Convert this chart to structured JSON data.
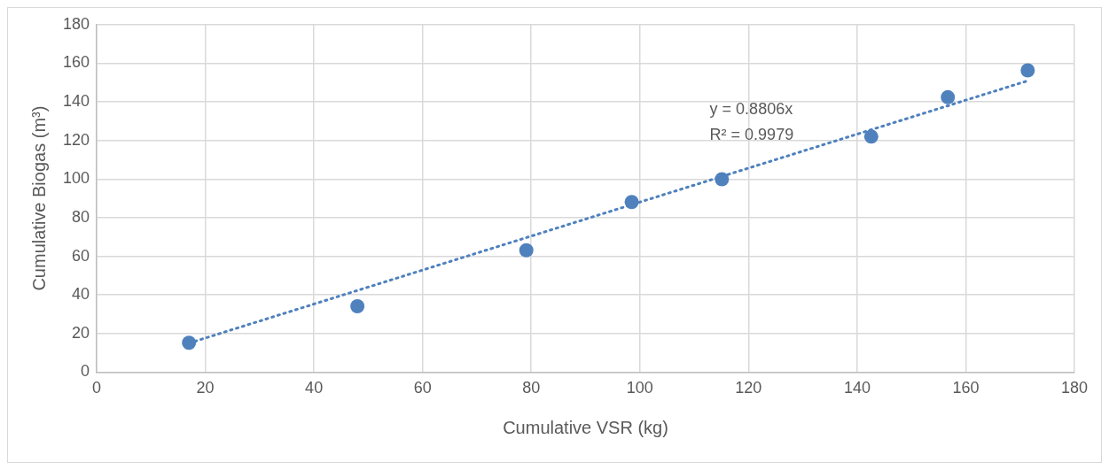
{
  "chart_data": {
    "type": "scatter",
    "xlabel": "Cumulative VSR (kg)",
    "ylabel": "Cumulative Biogas (m³)",
    "series": [
      {
        "color": "#4f81bd",
        "marker": "circle",
        "x": [
          17.0,
          48.0,
          79.1,
          98.5,
          115.1,
          142.6,
          156.7,
          171.4
        ],
        "values": [
          15.2,
          34.1,
          63.1,
          88.1,
          99.9,
          122.0,
          142.4,
          156.3
        ]
      },
      {
        "type": "line",
        "color": "#4f81bd",
        "line_style": "dotted",
        "marker": "none",
        "x": [
          17.0,
          171.4
        ],
        "values": [
          15.0,
          150.9
        ]
      }
    ],
    "annotations": [
      "y = 0.8806x",
      "R² = 0.9979"
    ],
    "xlim": [
      0,
      180
    ],
    "xticks": [
      0,
      20,
      40,
      60,
      80,
      100,
      120,
      140,
      160,
      180
    ],
    "ylim": [
      0,
      180
    ],
    "yticks": [
      0,
      20,
      40,
      60,
      80,
      100,
      120,
      140,
      160,
      180
    ],
    "grid": true,
    "legend": false
  }
}
